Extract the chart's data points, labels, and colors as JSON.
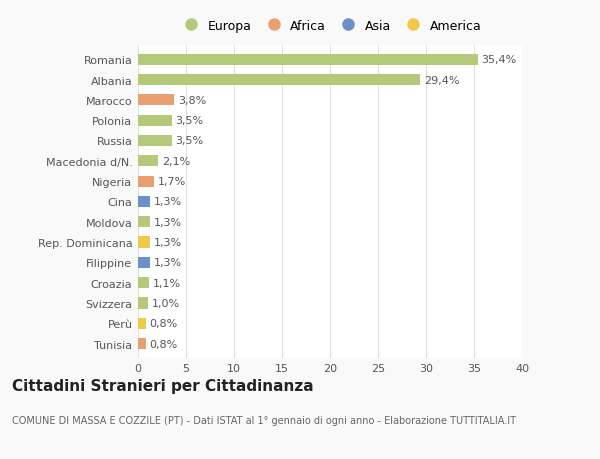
{
  "categories": [
    "Tunisia",
    "Perù",
    "Svizzera",
    "Croazia",
    "Filippine",
    "Rep. Dominicana",
    "Moldova",
    "Cina",
    "Nigeria",
    "Macedonia d/N.",
    "Russia",
    "Polonia",
    "Marocco",
    "Albania",
    "Romania"
  ],
  "values": [
    0.8,
    0.8,
    1.0,
    1.1,
    1.3,
    1.3,
    1.3,
    1.3,
    1.7,
    2.1,
    3.5,
    3.5,
    3.8,
    29.4,
    35.4
  ],
  "labels": [
    "0,8%",
    "0,8%",
    "1,0%",
    "1,1%",
    "1,3%",
    "1,3%",
    "1,3%",
    "1,3%",
    "1,7%",
    "2,1%",
    "3,5%",
    "3,5%",
    "3,8%",
    "29,4%",
    "35,4%"
  ],
  "colors": [
    "#e8a070",
    "#f0c84a",
    "#b5c97a",
    "#b5c97a",
    "#6b8fc7",
    "#f0c84a",
    "#b5c97a",
    "#6b8fc7",
    "#e8a070",
    "#b5c97a",
    "#b5c97a",
    "#b5c97a",
    "#e8a070",
    "#b5c97a",
    "#b5c97a"
  ],
  "legend_labels": [
    "Europa",
    "Africa",
    "Asia",
    "America"
  ],
  "legend_colors": [
    "#b5c97a",
    "#e8a070",
    "#6b8fc7",
    "#f0c84a"
  ],
  "title": "Cittadini Stranieri per Cittadinanza",
  "subtitle": "COMUNE DI MASSA E COZZILE (PT) - Dati ISTAT al 1° gennaio di ogni anno - Elaborazione TUTTITALIA.IT",
  "xlim": [
    0,
    40
  ],
  "xticks": [
    0,
    5,
    10,
    15,
    20,
    25,
    30,
    35,
    40
  ],
  "background_color": "#f9f9f9",
  "plot_bg_color": "#ffffff",
  "grid_color": "#e0e0e0",
  "title_fontsize": 11,
  "subtitle_fontsize": 7,
  "label_fontsize": 8,
  "tick_fontsize": 8,
  "bar_height": 0.55
}
